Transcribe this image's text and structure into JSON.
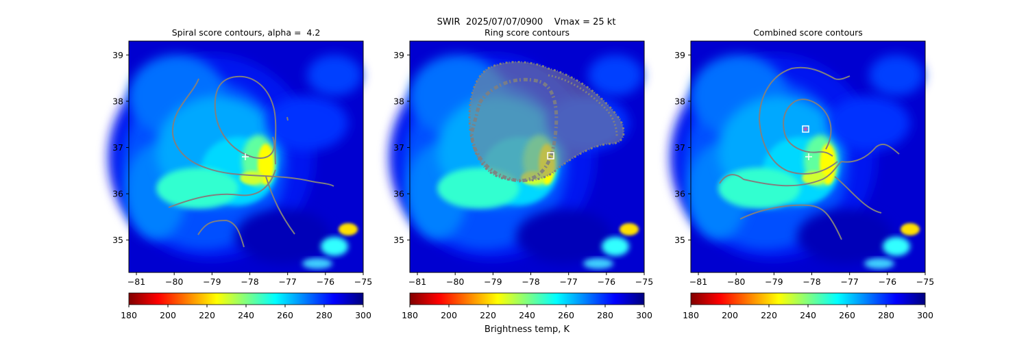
{
  "figure": {
    "suptitle_line": "SWIR  2025/07/07/0900    Vmax = 25 kt",
    "colorbar_label": "Brightness temp, K"
  },
  "colors": {
    "contour": "#808080",
    "marker": "#ffffff",
    "center_marker": "#b060c0",
    "colormap": [
      "#800000",
      "#ff0000",
      "#ff8000",
      "#ffff00",
      "#80ff80",
      "#00ffff",
      "#0080ff",
      "#0000ff",
      "#000080"
    ]
  },
  "chart_data": [
    {
      "type": "heatmap",
      "title": "Spiral score contours, alpha =  4.2",
      "xlim": [
        -81.2,
        -75
      ],
      "ylim": [
        34.3,
        39.3
      ],
      "xticks": [
        -81,
        -80,
        -79,
        -78,
        -77,
        -76,
        -75
      ],
      "xtick_labels": [
        "−81",
        "−80",
        "−79",
        "−78",
        "−77",
        "−76",
        "−75"
      ],
      "yticks": [
        35,
        36,
        37,
        38,
        39
      ],
      "ytick_labels": [
        "35",
        "36",
        "37",
        "38",
        "39"
      ],
      "colorbar": {
        "range": [
          180,
          300
        ],
        "ticks": [
          "180",
          "200",
          "220",
          "240",
          "260",
          "280",
          "300"
        ]
      },
      "storm_center_plus": [
        -78.05,
        36.8
      ]
    },
    {
      "type": "heatmap",
      "title": "Ring score contours",
      "xlim": [
        -81.2,
        -75
      ],
      "ylim": [
        34.3,
        39.3
      ],
      "xticks": [
        -81,
        -80,
        -79,
        -78,
        -77,
        -76,
        -75
      ],
      "xtick_labels": [
        "−81",
        "−80",
        "−79",
        "−78",
        "−77",
        "−76",
        "−75"
      ],
      "yticks": [
        35,
        36,
        37,
        38,
        39
      ],
      "ytick_labels": [
        "35",
        "36",
        "37",
        "38",
        "39"
      ],
      "colorbar": {
        "range": [
          180,
          300
        ],
        "ticks": [
          "180",
          "200",
          "220",
          "240",
          "260",
          "280",
          "300"
        ]
      },
      "ring_center_square": [
        -77.45,
        36.82
      ]
    },
    {
      "type": "heatmap",
      "title": "Combined score contours",
      "xlim": [
        -81.2,
        -75
      ],
      "ylim": [
        34.3,
        39.3
      ],
      "xticks": [
        -81,
        -80,
        -79,
        -78,
        -77,
        -76,
        -75
      ],
      "xtick_labels": [
        "−81",
        "−80",
        "−79",
        "−78",
        "−77",
        "−76",
        "−75"
      ],
      "yticks": [
        35,
        36,
        37,
        38,
        39
      ],
      "ytick_labels": [
        "35",
        "36",
        "37",
        "38",
        "39"
      ],
      "colorbar": {
        "range": [
          180,
          300
        ],
        "ticks": [
          "180",
          "200",
          "220",
          "240",
          "260",
          "280",
          "300"
        ]
      },
      "storm_center_plus": [
        -78.05,
        36.8
      ],
      "combined_center": [
        -78.15,
        37.42
      ]
    }
  ]
}
